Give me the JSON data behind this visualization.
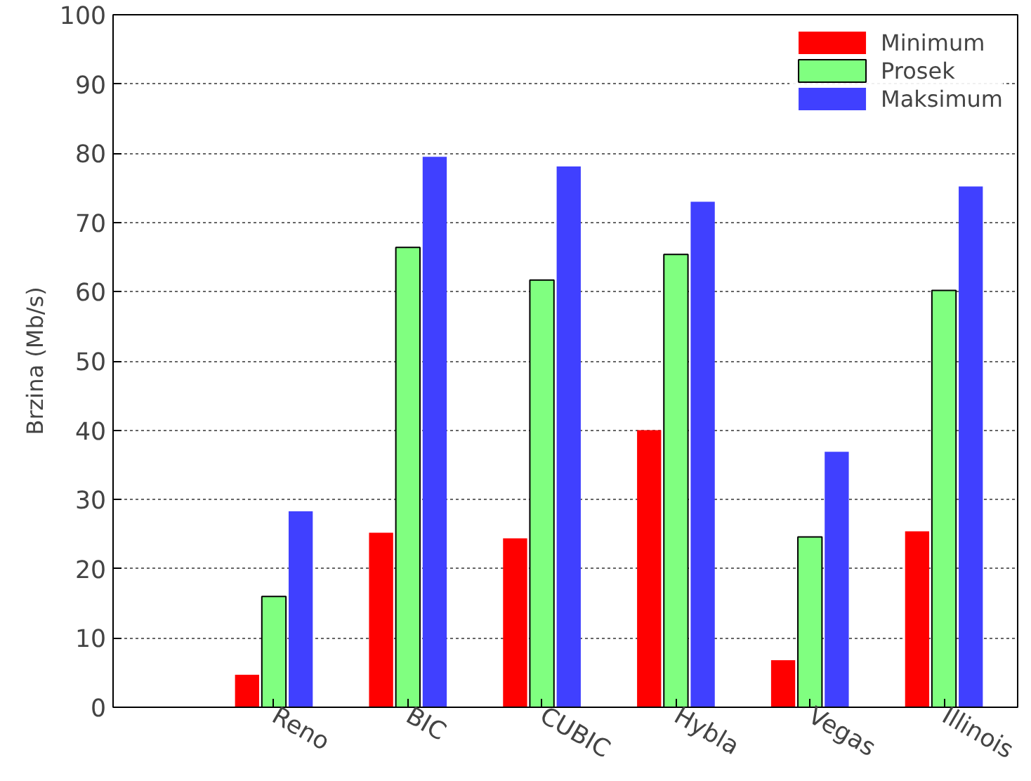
{
  "chart_data": {
    "type": "bar",
    "ylabel": "Brzina (Mb/s)",
    "categories": [
      "Reno",
      "BIC",
      "CUBIC",
      "Hybla",
      "Vegas",
      "Illinois"
    ],
    "series": [
      {
        "name": "Minimum",
        "color": "#ff0000",
        "values": [
          4.7,
          25.2,
          24.4,
          40.0,
          6.8,
          25.4
        ]
      },
      {
        "name": "Prosek",
        "color": "#80ff80",
        "values": [
          16.0,
          66.4,
          61.7,
          65.4,
          24.6,
          60.2
        ]
      },
      {
        "name": "Maksimum",
        "color": "#4040ff",
        "values": [
          28.3,
          79.5,
          78.1,
          73.0,
          36.9,
          75.2
        ]
      }
    ],
    "ylim": [
      0,
      100
    ],
    "yticks": [
      0,
      10,
      20,
      30,
      40,
      50,
      60,
      70,
      80,
      90,
      100
    ],
    "grid": "y",
    "legend": "top right"
  }
}
